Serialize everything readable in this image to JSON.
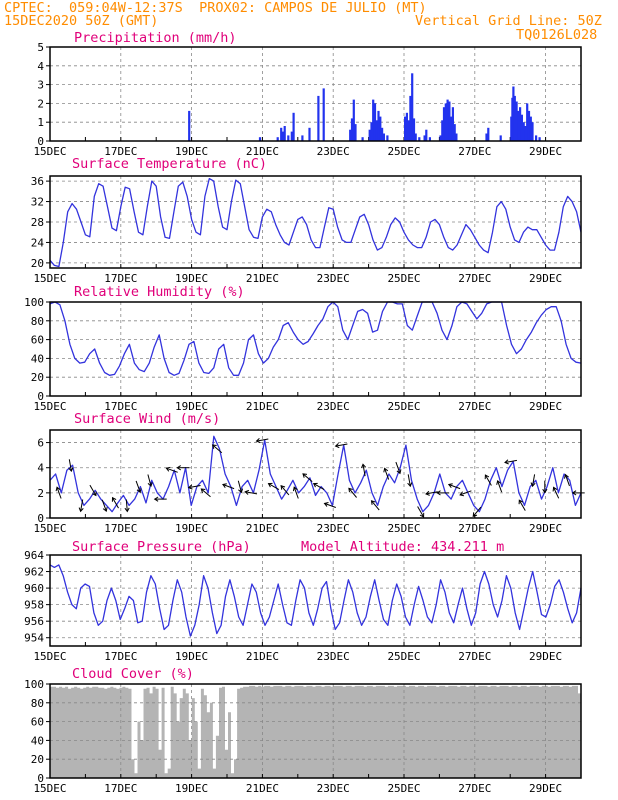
{
  "header": {
    "line1": "CPTEC:  059:04W-12:37S  PROX02: CAMPOS DE JULIO (MT)",
    "line2_left": "15DEC2020 50Z (GMT)",
    "line2_right": "Vertical Grid Line: 50Z",
    "line3_right": "TQ0126L028",
    "model_altitude": "Model Altitude: 434.211  m",
    "color": "#ff8c00"
  },
  "colors": {
    "title": "#e0007a",
    "line": "#3333dd",
    "bars": "#2233ee",
    "cloud": "#b4b4b4",
    "grid": "#888888"
  },
  "x_tick_labels": [
    "15DEC",
    "17DEC",
    "19DEC",
    "21DEC",
    "23DEC",
    "25DEC",
    "27DEC",
    "29DEC"
  ],
  "chart_data": [
    {
      "type": "bar",
      "title": "Precipitation (mm/h)",
      "ylim": [
        0,
        5
      ],
      "y_ticks": [
        0,
        1,
        2,
        3,
        4,
        5
      ],
      "x_range_days": [
        0,
        15
      ],
      "values": [
        [
          3.9,
          1.6
        ],
        [
          5.9,
          0.2
        ],
        [
          6.4,
          0.2
        ],
        [
          6.5,
          0.7
        ],
        [
          6.55,
          0.5
        ],
        [
          6.6,
          0.8
        ],
        [
          6.7,
          0.3
        ],
        [
          6.8,
          0.5
        ],
        [
          6.85,
          1.5
        ],
        [
          7.1,
          0.3
        ],
        [
          7.3,
          0.7
        ],
        [
          7.55,
          2.4
        ],
        [
          7.7,
          2.8
        ],
        [
          8.45,
          0.6
        ],
        [
          8.5,
          1.2
        ],
        [
          8.55,
          2.2
        ],
        [
          8.6,
          0.9
        ],
        [
          8.8,
          0.2
        ],
        [
          9.0,
          0.6
        ],
        [
          9.05,
          1.0
        ],
        [
          9.1,
          2.2
        ],
        [
          9.15,
          2.0
        ],
        [
          9.2,
          1.1
        ],
        [
          9.25,
          1.6
        ],
        [
          9.3,
          1.3
        ],
        [
          9.35,
          0.7
        ],
        [
          9.4,
          0.4
        ],
        [
          9.5,
          0.3
        ],
        [
          10.0,
          1.3
        ],
        [
          10.05,
          1.5
        ],
        [
          10.1,
          1.1
        ],
        [
          10.15,
          2.4
        ],
        [
          10.2,
          3.6
        ],
        [
          10.25,
          1.2
        ],
        [
          10.3,
          0.4
        ],
        [
          10.4,
          0.2
        ],
        [
          10.55,
          0.3
        ],
        [
          10.6,
          0.6
        ],
        [
          10.7,
          0.2
        ],
        [
          11.0,
          0.3
        ],
        [
          11.05,
          1.1
        ],
        [
          11.1,
          1.8
        ],
        [
          11.15,
          2.0
        ],
        [
          11.2,
          2.2
        ],
        [
          11.25,
          2.1
        ],
        [
          11.3,
          1.3
        ],
        [
          11.35,
          1.8
        ],
        [
          11.4,
          0.9
        ],
        [
          11.45,
          0.4
        ],
        [
          12.3,
          0.4
        ],
        [
          12.35,
          0.7
        ],
        [
          12.7,
          0.3
        ],
        [
          13.0,
          1.3
        ],
        [
          13.03,
          2.3
        ],
        [
          13.06,
          2.9
        ],
        [
          13.1,
          2.4
        ],
        [
          13.15,
          2.1
        ],
        [
          13.2,
          1.6
        ],
        [
          13.25,
          1.8
        ],
        [
          13.3,
          1.4
        ],
        [
          13.35,
          1.0
        ],
        [
          13.4,
          0.8
        ],
        [
          13.45,
          2.0
        ],
        [
          13.5,
          1.6
        ],
        [
          13.55,
          1.3
        ],
        [
          13.6,
          1.0
        ],
        [
          13.7,
          0.3
        ],
        [
          13.8,
          0.2
        ]
      ]
    },
    {
      "type": "line",
      "title": "Surface Temperature (nC)",
      "ylim": [
        19,
        37
      ],
      "y_ticks": [
        20,
        24,
        28,
        32,
        36
      ],
      "x_range_days": [
        0,
        15
      ],
      "y": [
        20.5,
        19.5,
        19.3,
        24.0,
        30.0,
        31.6,
        30.5,
        28.0,
        25.5,
        25.1,
        33.0,
        35.5,
        35.0,
        31.0,
        26.8,
        26.3,
        31.0,
        34.8,
        34.5,
        30.0,
        26.0,
        25.5,
        31.0,
        36.0,
        35.0,
        29.0,
        25.0,
        24.8,
        30.0,
        35.0,
        35.8,
        33.0,
        28.5,
        26.0,
        25.5,
        33.0,
        36.5,
        36.0,
        31.0,
        27.0,
        26.5,
        32.0,
        36.2,
        35.5,
        31.0,
        26.5,
        25.0,
        24.8,
        29.0,
        30.5,
        30.0,
        27.5,
        25.5,
        24.0,
        23.5,
        26.0,
        28.5,
        29.0,
        27.5,
        24.5,
        23.0,
        23.0,
        27.0,
        30.8,
        30.5,
        27.0,
        24.5,
        24.0,
        24.0,
        26.5,
        29.0,
        29.5,
        27.5,
        24.5,
        22.5,
        23.0,
        25.0,
        27.5,
        28.8,
        28.0,
        26.0,
        24.5,
        23.5,
        23.0,
        23.0,
        25.0,
        28.0,
        28.5,
        27.5,
        25.0,
        23.0,
        22.5,
        23.5,
        25.5,
        27.5,
        26.5,
        25.0,
        23.5,
        22.5,
        22.0,
        26.0,
        31.0,
        32.0,
        30.5,
        27.0,
        24.5,
        24.0,
        26.0,
        27.0,
        26.5,
        26.5,
        25.0,
        23.5,
        22.5,
        22.5,
        26.0,
        31.0,
        33.0,
        32.0,
        30.0,
        26.0
      ]
    },
    {
      "type": "line",
      "title": "Relative Humidity (%)",
      "ylim": [
        0,
        100
      ],
      "y_ticks": [
        0,
        20,
        40,
        60,
        80,
        100
      ],
      "x_range_days": [
        0,
        15
      ],
      "y": [
        98,
        100,
        97,
        80,
        55,
        40,
        35,
        36,
        45,
        50,
        35,
        25,
        22,
        23,
        32,
        45,
        55,
        35,
        28,
        26,
        35,
        52,
        65,
        40,
        25,
        22,
        24,
        38,
        55,
        58,
        35,
        25,
        24,
        30,
        50,
        55,
        30,
        22,
        22,
        35,
        60,
        65,
        45,
        35,
        40,
        52,
        60,
        75,
        78,
        68,
        60,
        55,
        58,
        66,
        75,
        82,
        95,
        100,
        95,
        70,
        60,
        75,
        90,
        92,
        88,
        68,
        70,
        90,
        100,
        100,
        98,
        98,
        75,
        70,
        85,
        100,
        100,
        100,
        88,
        70,
        60,
        75,
        95,
        100,
        98,
        90,
        82,
        88,
        98,
        100,
        100,
        100,
        75,
        55,
        45,
        50,
        60,
        68,
        78,
        86,
        92,
        95,
        95,
        80,
        55,
        40,
        36,
        35
      ]
    },
    {
      "type": "line",
      "title": "Surface Wind (m/s)",
      "ylim": [
        0,
        7
      ],
      "y_ticks": [
        0,
        2,
        4,
        6
      ],
      "x_range_days": [
        0,
        15
      ],
      "y": [
        3.0,
        3.5,
        2.0,
        3.8,
        4.2,
        2.0,
        1.0,
        1.5,
        2.2,
        1.5,
        1.0,
        0.5,
        1.2,
        1.8,
        1.0,
        1.5,
        2.5,
        1.2,
        3.0,
        2.0,
        1.5,
        2.5,
        3.8,
        2.0,
        4.0,
        1.0,
        2.5,
        3.0,
        2.0,
        6.5,
        5.5,
        3.5,
        2.5,
        1.0,
        2.5,
        3.0,
        2.0,
        3.8,
        6.2,
        3.5,
        2.5,
        1.5,
        2.2,
        3.0,
        2.0,
        2.5,
        3.2,
        1.8,
        2.5,
        2.0,
        1.0,
        3.5,
        5.8,
        3.0,
        2.0,
        2.8,
        3.8,
        2.0,
        1.0,
        2.5,
        3.5,
        2.8,
        4.0,
        5.8,
        3.0,
        1.5,
        0.5,
        1.0,
        2.0,
        3.5,
        2.0,
        1.5,
        2.5,
        3.0,
        2.0,
        1.0,
        0.5,
        1.5,
        3.0,
        4.0,
        2.5,
        3.8,
        4.5,
        2.0,
        1.0,
        2.5,
        3.0,
        1.5,
        2.5,
        4.0,
        2.0,
        3.5,
        3.0,
        1.0,
        2.0
      ],
      "arrow_direction_deg": [
        250,
        80,
        100,
        60,
        70,
        240,
        85,
        70,
        75,
        180,
        200,
        180,
        170,
        220,
        220,
        200,
        75,
        190,
        170,
        210,
        230,
        250,
        220,
        210,
        200,
        170,
        230,
        260,
        230,
        250,
        70,
        80,
        60,
        170,
        180,
        200,
        160,
        130,
        240,
        250,
        170,
        240,
        100,
        90,
        245,
        250,
        180
      ]
    },
    {
      "type": "line",
      "title": "Surface Pressure (hPa)",
      "ylim": [
        953,
        964
      ],
      "y_ticks": [
        954,
        956,
        958,
        960,
        962,
        964
      ],
      "x_range_days": [
        0,
        15
      ],
      "y": [
        962.8,
        962.5,
        962.8,
        961.5,
        959.5,
        958.0,
        957.5,
        960.0,
        960.5,
        960.2,
        957.0,
        955.5,
        956.0,
        958.5,
        960.0,
        958.5,
        956.2,
        957.5,
        959.0,
        958.5,
        955.8,
        956.0,
        959.5,
        961.5,
        960.5,
        957.5,
        955.0,
        955.5,
        958.5,
        961.0,
        959.5,
        956.5,
        954.2,
        955.5,
        958.0,
        961.5,
        960.0,
        957.0,
        954.5,
        955.5,
        959.0,
        961.0,
        959.0,
        956.5,
        955.5,
        958.0,
        960.5,
        959.5,
        957.0,
        955.5,
        956.5,
        958.5,
        960.5,
        958.0,
        955.8,
        955.5,
        958.5,
        961.0,
        960.0,
        957.0,
        955.5,
        957.5,
        960.0,
        960.8,
        957.5,
        955.0,
        955.8,
        958.5,
        961.0,
        959.5,
        957.0,
        955.5,
        956.5,
        959.0,
        961.0,
        958.5,
        956.2,
        955.5,
        958.5,
        960.5,
        959.0,
        956.5,
        955.5,
        958.0,
        960.2,
        958.5,
        956.5,
        955.8,
        958.0,
        961.0,
        959.5,
        957.0,
        955.8,
        958.0,
        960.0,
        957.5,
        955.5,
        957.0,
        960.5,
        962.0,
        960.5,
        958.0,
        956.5,
        958.5,
        961.5,
        960.0,
        957.0,
        955.0,
        957.5,
        960.0,
        962.0,
        959.5,
        956.8,
        956.5,
        958.0,
        960.2,
        961.0,
        959.5,
        957.5,
        955.8,
        957.0,
        960.0
      ]
    },
    {
      "type": "area",
      "title": "Cloud Cover (%)",
      "ylim": [
        0,
        100
      ],
      "y_ticks": [
        0,
        20,
        40,
        60,
        80,
        100
      ],
      "x_range_days": [
        0,
        15
      ],
      "y": [
        97,
        97,
        96,
        97,
        96,
        97,
        95,
        96,
        97,
        96,
        95,
        96,
        97,
        96,
        97,
        97,
        96,
        96,
        95,
        96,
        97,
        96,
        95,
        96,
        97,
        96,
        95,
        20,
        5,
        60,
        40,
        95,
        96,
        90,
        97,
        95,
        30,
        96,
        5,
        10,
        97,
        90,
        60,
        85,
        95,
        90,
        40,
        85,
        60,
        10,
        95,
        88,
        70,
        80,
        10,
        45,
        96,
        97,
        30,
        70,
        5,
        20,
        95,
        96,
        97,
        97,
        98,
        98,
        97,
        98,
        97,
        98,
        98,
        97,
        98,
        98,
        98,
        97,
        98,
        98,
        97,
        98,
        98,
        98,
        97,
        98,
        98,
        97,
        98,
        98,
        97,
        98,
        98,
        97,
        98,
        98,
        98,
        97,
        98,
        98,
        97,
        98,
        98,
        98,
        97,
        98,
        98,
        97,
        98,
        98,
        98,
        97,
        98,
        98,
        97,
        98,
        98,
        98,
        97,
        98,
        98,
        97,
        98,
        98,
        97,
        98,
        98,
        98,
        97,
        98,
        98,
        97,
        98,
        98,
        98,
        97,
        98,
        98,
        97,
        98,
        98,
        97,
        98,
        98,
        98,
        97,
        98,
        98,
        97,
        98,
        98,
        98,
        97,
        98,
        98,
        97,
        98,
        98,
        97,
        98,
        98,
        98,
        97,
        98,
        98,
        97,
        98,
        98,
        98,
        97,
        98,
        98,
        97,
        98,
        98,
        90
      ]
    }
  ]
}
